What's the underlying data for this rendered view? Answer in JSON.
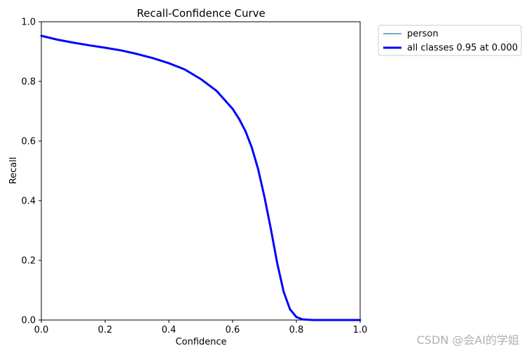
{
  "chart_data": {
    "type": "line",
    "title": "Recall-Confidence Curve",
    "xlabel": "Confidence",
    "ylabel": "Recall",
    "xlim": [
      0,
      1
    ],
    "ylim": [
      0,
      1
    ],
    "xticks": [
      "0.0",
      "0.2",
      "0.4",
      "0.6",
      "0.8",
      "1.0"
    ],
    "yticks": [
      "0.0",
      "0.2",
      "0.4",
      "0.6",
      "0.8",
      "1.0"
    ],
    "grid": false,
    "legend_position": "outside-top-right",
    "series": [
      {
        "name": "person",
        "color": "#1f77b4",
        "x": [
          0.0,
          0.05,
          0.1,
          0.15,
          0.2,
          0.25,
          0.3,
          0.35,
          0.4,
          0.45,
          0.5,
          0.55,
          0.6,
          0.62,
          0.64,
          0.66,
          0.68,
          0.7,
          0.72,
          0.74,
          0.76,
          0.78,
          0.8,
          0.82,
          0.85,
          0.9,
          1.0
        ],
        "y": [
          0.953,
          0.94,
          0.93,
          0.921,
          0.913,
          0.904,
          0.892,
          0.878,
          0.861,
          0.84,
          0.808,
          0.768,
          0.708,
          0.675,
          0.634,
          0.579,
          0.506,
          0.412,
          0.305,
          0.19,
          0.095,
          0.036,
          0.01,
          0.002,
          0.0,
          0.0,
          0.0
        ]
      },
      {
        "name": "all classes 0.95 at 0.000",
        "color": "#0000ff",
        "x": [
          0.0,
          0.05,
          0.1,
          0.15,
          0.2,
          0.25,
          0.3,
          0.35,
          0.4,
          0.45,
          0.5,
          0.55,
          0.6,
          0.62,
          0.64,
          0.66,
          0.68,
          0.7,
          0.72,
          0.74,
          0.76,
          0.78,
          0.8,
          0.82,
          0.85,
          0.9,
          1.0
        ],
        "y": [
          0.953,
          0.94,
          0.93,
          0.921,
          0.913,
          0.904,
          0.892,
          0.878,
          0.861,
          0.84,
          0.808,
          0.768,
          0.708,
          0.675,
          0.634,
          0.579,
          0.506,
          0.412,
          0.305,
          0.19,
          0.095,
          0.036,
          0.01,
          0.002,
          0.0,
          0.0,
          0.0
        ]
      }
    ]
  },
  "watermark": "CSDN @会AI的学姐"
}
